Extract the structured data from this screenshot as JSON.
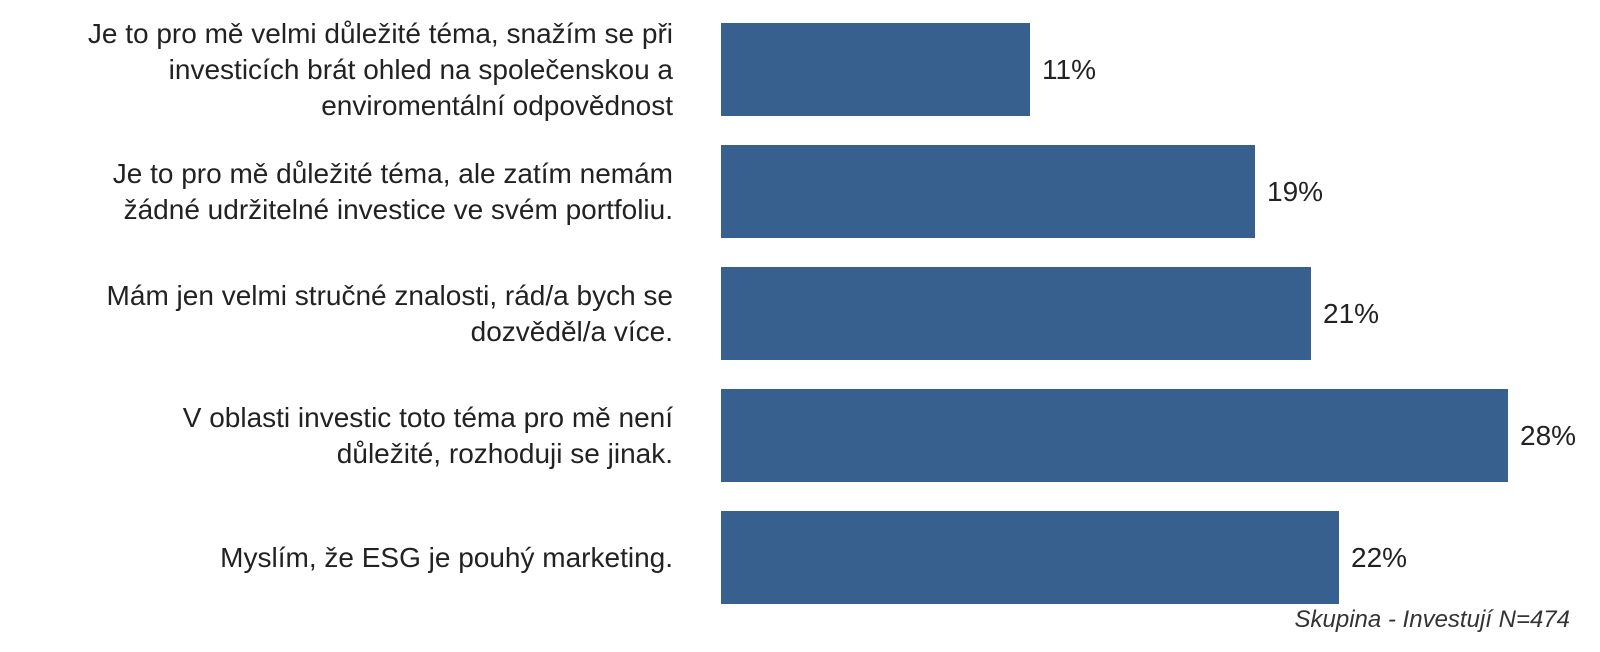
{
  "chart_data": {
    "type": "bar",
    "orientation": "horizontal",
    "title": "",
    "xlabel": "",
    "ylabel": "",
    "xlim": [
      0,
      28
    ],
    "grid": false,
    "legend": "none",
    "bar_color": "#37608f",
    "categories": [
      "Je to pro mě velmi důležité téma, snažím se při investicích brát ohled na společenskou a enviromentální odpovědnost",
      "Je to pro mě důležité téma, ale zatím nemám žádné udržitelné investice ve svém portfoliu.",
      "Mám jen velmi stručné znalosti, rád/a bych se dozvěděl/a více.",
      "V oblasti investic toto téma pro mě není důležité, rozhoduji se jinak.",
      "Myslím, že ESG je pouhý marketing."
    ],
    "values": [
      11,
      19,
      21,
      28,
      22
    ],
    "value_labels": [
      "11%",
      "19%",
      "21%",
      "28%",
      "22%"
    ],
    "annotation": "Skupina - Investují N=474"
  }
}
